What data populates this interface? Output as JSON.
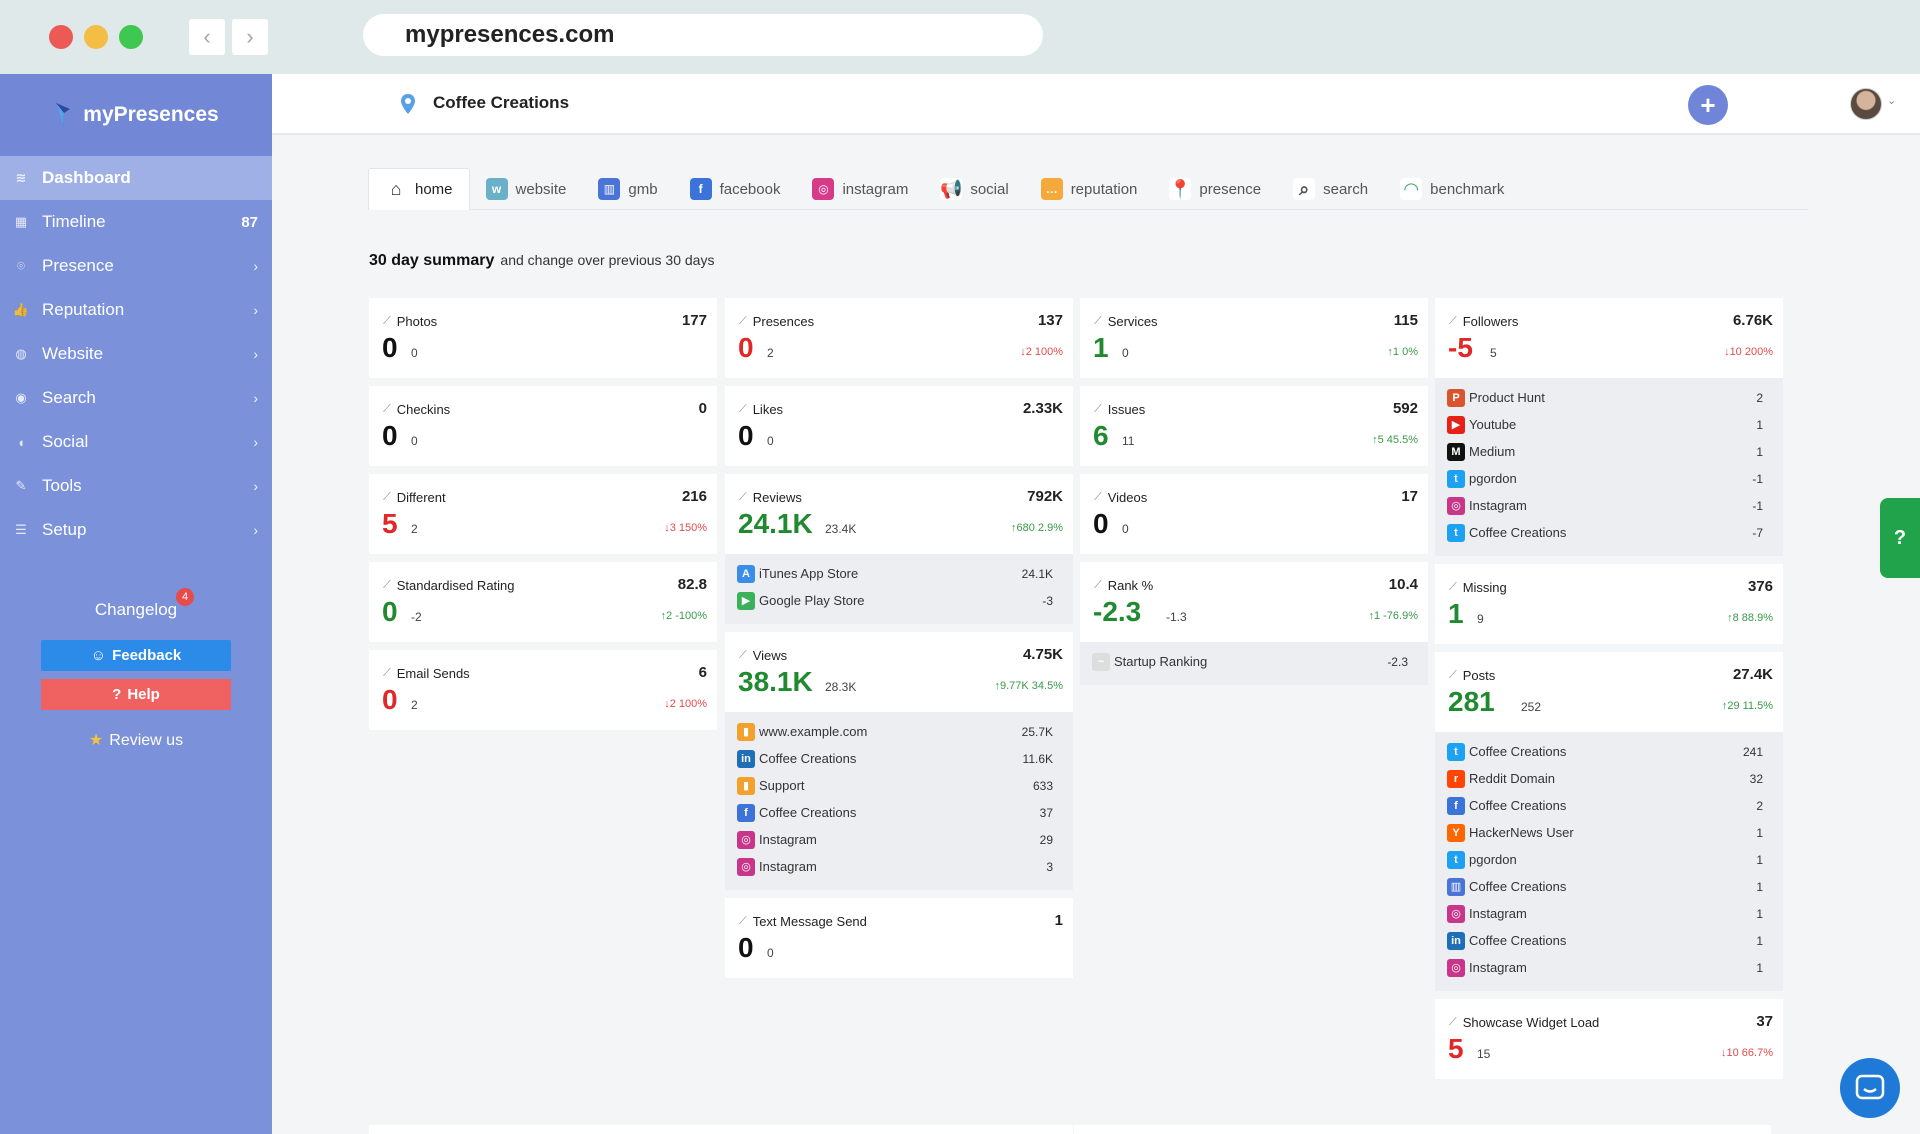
{
  "browser": {
    "url": "mypresences.com"
  },
  "sidebar": {
    "brand": "myPresences",
    "items": [
      {
        "label": "Dashboard",
        "count": "",
        "chevron": ""
      },
      {
        "label": "Timeline",
        "count": "87",
        "chevron": ""
      },
      {
        "label": "Presence",
        "count": "",
        "chevron": "›"
      },
      {
        "label": "Reputation",
        "count": "",
        "chevron": "›"
      },
      {
        "label": "Website",
        "count": "",
        "chevron": "›"
      },
      {
        "label": "Search",
        "count": "",
        "chevron": "›"
      },
      {
        "label": "Social",
        "count": "",
        "chevron": "›"
      },
      {
        "label": "Tools",
        "count": "",
        "chevron": "›"
      },
      {
        "label": "Setup",
        "count": "",
        "chevron": "›"
      }
    ],
    "changelog": "Changelog",
    "changelog_badge": "4",
    "feedback": "Feedback",
    "help": "Help",
    "review": "Review us"
  },
  "header": {
    "business": "Coffee Creations"
  },
  "tabs": [
    {
      "label": "home",
      "icon": "house-icon"
    },
    {
      "label": "website",
      "icon": "www-icon"
    },
    {
      "label": "gmb",
      "icon": "gmb-store-icon"
    },
    {
      "label": "facebook",
      "icon": "facebook-icon"
    },
    {
      "label": "instagram",
      "icon": "instagram-icon"
    },
    {
      "label": "social",
      "icon": "megaphone-icon"
    },
    {
      "label": "reputation",
      "icon": "speech-bubble-icon"
    },
    {
      "label": "presence",
      "icon": "map-pin-icon"
    },
    {
      "label": "search",
      "icon": "magnifier-icon"
    },
    {
      "label": "benchmark",
      "icon": "gauge-icon"
    }
  ],
  "summary": {
    "title": "30 day summary",
    "subtitle": "and change over previous 30 days"
  },
  "col1": [
    {
      "title": "Photos",
      "total": "177",
      "value": "0",
      "color": "black",
      "prev": "0",
      "change": "",
      "dir": ""
    },
    {
      "title": "Checkins",
      "total": "0",
      "value": "0",
      "color": "black",
      "prev": "0",
      "change": "",
      "dir": ""
    },
    {
      "title": "Different",
      "total": "216",
      "value": "5",
      "color": "red",
      "prev": "2",
      "change": "3  150%",
      "dir": "down"
    },
    {
      "title": "Standardised Rating",
      "total": "82.8",
      "value": "0",
      "color": "green",
      "prev": "-2",
      "change": "2  -100%",
      "dir": "up"
    },
    {
      "title": "Email Sends",
      "total": "6",
      "value": "0",
      "color": "red",
      "prev": "2",
      "change": "2  100%",
      "dir": "down"
    }
  ],
  "col2": {
    "presences": {
      "title": "Presences",
      "total": "137",
      "value": "0",
      "color": "red",
      "prev": "2",
      "change": "2  100%",
      "dir": "down"
    },
    "likes": {
      "title": "Likes",
      "total": "2.33K",
      "value": "0",
      "color": "black",
      "prev": "0",
      "change": "",
      "dir": ""
    },
    "reviews": {
      "title": "Reviews",
      "total": "792K",
      "value": "24.1K",
      "color": "green",
      "prev": "23.4K",
      "change": "680  2.9%",
      "dir": "up"
    },
    "reviews_list": [
      {
        "name": "iTunes App Store",
        "value": "24.1K",
        "icon": "app-store-icon"
      },
      {
        "name": "Google Play Store",
        "value": "-3",
        "icon": "google-play-icon"
      }
    ],
    "views": {
      "title": "Views",
      "total": "4.75K",
      "value": "38.1K",
      "color": "green",
      "prev": "28.3K",
      "change": "9.77K  34.5%",
      "dir": "up"
    },
    "views_list": [
      {
        "name": "www.example.com",
        "value": "25.7K",
        "icon": "analytics-icon"
      },
      {
        "name": "Coffee Creations",
        "value": "11.6K",
        "icon": "linkedin-icon"
      },
      {
        "name": "Support",
        "value": "633",
        "icon": "analytics-icon"
      },
      {
        "name": "Coffee Creations",
        "value": "37",
        "icon": "facebook-icon"
      },
      {
        "name": "Instagram",
        "value": "29",
        "icon": "instagram-icon"
      },
      {
        "name": "Instagram",
        "value": "3",
        "icon": "instagram-icon"
      }
    ],
    "text": {
      "title": "Text Message Send",
      "total": "1",
      "value": "0",
      "color": "black",
      "prev": "0",
      "change": "",
      "dir": ""
    }
  },
  "col3": {
    "services": {
      "title": "Services",
      "total": "115",
      "value": "1",
      "color": "green",
      "prev": "0",
      "change": "1  0%",
      "dir": "up"
    },
    "issues": {
      "title": "Issues",
      "total": "592",
      "value": "6",
      "color": "green",
      "prev": "11",
      "change": "5  45.5%",
      "dir": "up"
    },
    "videos": {
      "title": "Videos",
      "total": "17",
      "value": "0",
      "color": "black",
      "prev": "0",
      "change": "",
      "dir": ""
    },
    "rank": {
      "title": "Rank %",
      "total": "10.4",
      "value": "-2.3",
      "color": "green",
      "prev": "-1.3",
      "change": "1  -76.9%",
      "dir": "up"
    },
    "rank_list": [
      {
        "name": "Startup Ranking",
        "value": "-2.3",
        "icon": "startup-ranking-icon"
      }
    ]
  },
  "col4": {
    "followers": {
      "title": "Followers",
      "total": "6.76K",
      "value": "-5",
      "color": "red",
      "prev": "5",
      "change": "10  200%",
      "dir": "down"
    },
    "followers_list": [
      {
        "name": "Product Hunt",
        "value": "2",
        "icon": "product-hunt-icon"
      },
      {
        "name": "Youtube",
        "value": "1",
        "icon": "youtube-icon"
      },
      {
        "name": "Medium",
        "value": "1",
        "icon": "medium-icon"
      },
      {
        "name": "pgordon",
        "value": "-1",
        "icon": "twitter-icon"
      },
      {
        "name": "Instagram",
        "value": "-1",
        "icon": "instagram-icon"
      },
      {
        "name": "Coffee Creations",
        "value": "-7",
        "icon": "twitter-icon"
      }
    ],
    "missing": {
      "title": "Missing",
      "total": "376",
      "value": "1",
      "color": "green",
      "prev": "9",
      "change": "8  88.9%",
      "dir": "up"
    },
    "posts": {
      "title": "Posts",
      "total": "27.4K",
      "value": "281",
      "color": "green",
      "prev": "252",
      "change": "29  11.5%",
      "dir": "up"
    },
    "posts_list": [
      {
        "name": "Coffee Creations",
        "value": "241",
        "icon": "twitter-icon"
      },
      {
        "name": "Reddit Domain",
        "value": "32",
        "icon": "reddit-icon"
      },
      {
        "name": "Coffee Creations",
        "value": "2",
        "icon": "facebook-icon"
      },
      {
        "name": "HackerNews User",
        "value": "1",
        "icon": "hackernews-icon"
      },
      {
        "name": "pgordon",
        "value": "1",
        "icon": "twitter-icon"
      },
      {
        "name": "Coffee Creations",
        "value": "1",
        "icon": "gmb-store-icon"
      },
      {
        "name": "Instagram",
        "value": "1",
        "icon": "instagram-icon"
      },
      {
        "name": "Coffee Creations",
        "value": "1",
        "icon": "linkedin-icon"
      },
      {
        "name": "Instagram",
        "value": "1",
        "icon": "instagram-icon"
      }
    ],
    "showcase": {
      "title": "Showcase Widget Load",
      "total": "37",
      "value": "5",
      "color": "red",
      "prev": "15",
      "change": "10  66.7%",
      "dir": "down"
    }
  },
  "widgets": {
    "help_tab": "?"
  },
  "colors": {
    "sidebar": "#7b91d9",
    "accent": "#7085d8",
    "red": "#e12828",
    "green": "#1f8a2f",
    "feedback": "#2c8be8",
    "help": "#f06161"
  }
}
